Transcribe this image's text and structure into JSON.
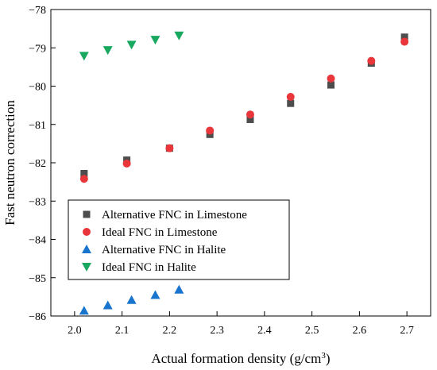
{
  "chart_data": {
    "type": "scatter",
    "xlabel_main": "Actual formation density (g/cm",
    "xlabel_sup": "3",
    "xlabel_close": ")",
    "ylabel": "Fast neutron correction",
    "xlim": [
      1.95,
      2.75
    ],
    "ylim": [
      -86,
      -78
    ],
    "xticks": [
      2.0,
      2.1,
      2.2,
      2.3,
      2.4,
      2.5,
      2.6,
      2.7
    ],
    "xtick_labels": [
      "2.0",
      "2.1",
      "2.2",
      "2.3",
      "2.4",
      "2.5",
      "2.6",
      "2.7"
    ],
    "yticks": [
      -78,
      -79,
      -80,
      -81,
      -82,
      -83,
      -84,
      -85,
      -86
    ],
    "ytick_labels": [
      "−78",
      "−79",
      "−80",
      "−81",
      "−82",
      "−83",
      "−84",
      "−85",
      "−86"
    ],
    "legend_position": "lower-left",
    "series": [
      {
        "name": "Alternative FNC in Limestone",
        "marker": "square",
        "color": "#4d4d4d",
        "points": [
          [
            2.02,
            -82.28
          ],
          [
            2.11,
            -81.93
          ],
          [
            2.2,
            -81.62
          ],
          [
            2.285,
            -81.26
          ],
          [
            2.37,
            -80.87
          ],
          [
            2.455,
            -80.45
          ],
          [
            2.54,
            -79.97
          ],
          [
            2.625,
            -79.4
          ],
          [
            2.695,
            -78.72
          ]
        ]
      },
      {
        "name": "Ideal FNC in Limestone",
        "marker": "circle",
        "color": "#e8363b",
        "points": [
          [
            2.02,
            -82.42
          ],
          [
            2.11,
            -82.02
          ],
          [
            2.2,
            -81.62
          ],
          [
            2.285,
            -81.16
          ],
          [
            2.37,
            -80.74
          ],
          [
            2.455,
            -80.28
          ],
          [
            2.54,
            -79.8
          ],
          [
            2.625,
            -79.34
          ],
          [
            2.695,
            -78.84
          ]
        ]
      },
      {
        "name": "Alternative FNC in Halite",
        "marker": "triangle-up",
        "color": "#1874cd",
        "points": [
          [
            2.02,
            -85.86
          ],
          [
            2.07,
            -85.72
          ],
          [
            2.12,
            -85.58
          ],
          [
            2.17,
            -85.45
          ],
          [
            2.22,
            -85.31
          ]
        ]
      },
      {
        "name": "Ideal FNC in Halite",
        "marker": "triangle-down",
        "color": "#19a85f",
        "points": [
          [
            2.02,
            -79.21
          ],
          [
            2.07,
            -79.06
          ],
          [
            2.12,
            -78.92
          ],
          [
            2.17,
            -78.79
          ],
          [
            2.22,
            -78.68
          ]
        ]
      }
    ]
  }
}
